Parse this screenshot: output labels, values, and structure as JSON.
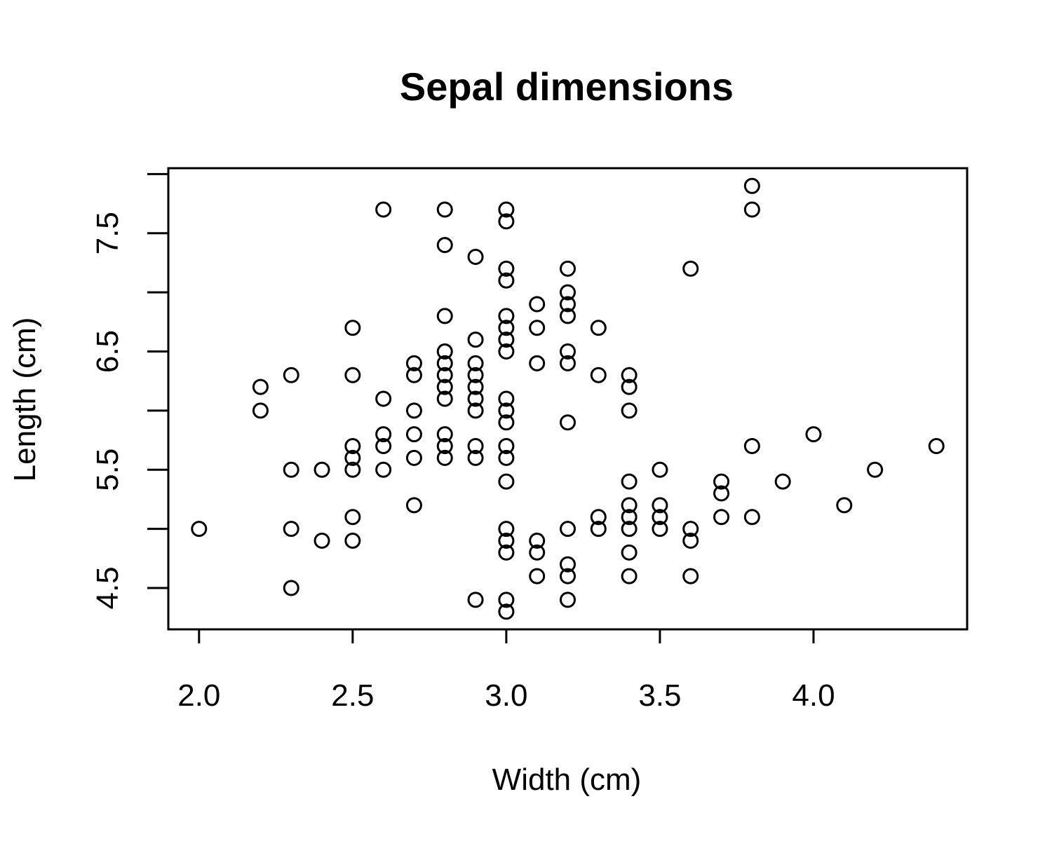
{
  "chart_data": {
    "type": "scatter",
    "title": "Sepal dimensions",
    "xlabel": "Width (cm)",
    "ylabel": "Length (cm)",
    "xlim": [
      1.9,
      4.5
    ],
    "ylim": [
      4.15,
      8.05
    ],
    "grid": false,
    "legend": "none",
    "x_ticks": [
      2.0,
      2.5,
      3.0,
      3.5,
      4.0
    ],
    "x_tick_labels": [
      "2.0",
      "2.5",
      "3.0",
      "3.5",
      "4.0"
    ],
    "y_ticks": [
      4.5,
      5.0,
      5.5,
      6.0,
      6.5,
      7.0,
      7.5,
      8.0
    ],
    "y_tick_labels": [
      "4.5",
      "",
      "5.5",
      "",
      "6.5",
      "",
      "7.5",
      ""
    ],
    "colors": {
      "points": "#000000",
      "axes": "#000000",
      "background": "#ffffff"
    },
    "points": [
      [
        2.0,
        5.0
      ],
      [
        2.2,
        6.2
      ],
      [
        2.2,
        6.0
      ],
      [
        2.3,
        6.3
      ],
      [
        2.3,
        5.5
      ],
      [
        2.3,
        5.0
      ],
      [
        2.3,
        4.5
      ],
      [
        2.4,
        5.5
      ],
      [
        2.4,
        4.9
      ],
      [
        2.5,
        6.7
      ],
      [
        2.5,
        6.3
      ],
      [
        2.5,
        5.7
      ],
      [
        2.5,
        5.6
      ],
      [
        2.5,
        5.5
      ],
      [
        2.5,
        5.1
      ],
      [
        2.5,
        4.9
      ],
      [
        2.6,
        7.7
      ],
      [
        2.6,
        6.1
      ],
      [
        2.6,
        5.8
      ],
      [
        2.6,
        5.7
      ],
      [
        2.6,
        5.5
      ],
      [
        2.7,
        6.4
      ],
      [
        2.7,
        6.3
      ],
      [
        2.7,
        6.0
      ],
      [
        2.7,
        5.8
      ],
      [
        2.7,
        5.6
      ],
      [
        2.7,
        5.2
      ],
      [
        2.8,
        7.7
      ],
      [
        2.8,
        7.4
      ],
      [
        2.8,
        6.8
      ],
      [
        2.8,
        6.5
      ],
      [
        2.8,
        6.4
      ],
      [
        2.8,
        6.3
      ],
      [
        2.8,
        6.2
      ],
      [
        2.8,
        6.1
      ],
      [
        2.8,
        5.8
      ],
      [
        2.8,
        5.7
      ],
      [
        2.8,
        5.6
      ],
      [
        2.9,
        7.3
      ],
      [
        2.9,
        6.6
      ],
      [
        2.9,
        6.4
      ],
      [
        2.9,
        6.3
      ],
      [
        2.9,
        6.2
      ],
      [
        2.9,
        6.1
      ],
      [
        2.9,
        6.0
      ],
      [
        2.9,
        5.7
      ],
      [
        2.9,
        5.6
      ],
      [
        2.9,
        4.4
      ],
      [
        3.0,
        7.7
      ],
      [
        3.0,
        7.6
      ],
      [
        3.0,
        7.2
      ],
      [
        3.0,
        7.1
      ],
      [
        3.0,
        6.8
      ],
      [
        3.0,
        6.7
      ],
      [
        3.0,
        6.6
      ],
      [
        3.0,
        6.5
      ],
      [
        3.0,
        6.1
      ],
      [
        3.0,
        6.0
      ],
      [
        3.0,
        5.9
      ],
      [
        3.0,
        5.7
      ],
      [
        3.0,
        5.6
      ],
      [
        3.0,
        5.4
      ],
      [
        3.0,
        5.0
      ],
      [
        3.0,
        4.9
      ],
      [
        3.0,
        4.8
      ],
      [
        3.0,
        4.4
      ],
      [
        3.0,
        4.3
      ],
      [
        3.1,
        6.9
      ],
      [
        3.1,
        6.7
      ],
      [
        3.1,
        6.4
      ],
      [
        3.1,
        4.9
      ],
      [
        3.1,
        4.8
      ],
      [
        3.1,
        4.6
      ],
      [
        3.2,
        7.2
      ],
      [
        3.2,
        7.0
      ],
      [
        3.2,
        6.9
      ],
      [
        3.2,
        6.8
      ],
      [
        3.2,
        6.5
      ],
      [
        3.2,
        6.4
      ],
      [
        3.2,
        5.9
      ],
      [
        3.2,
        5.0
      ],
      [
        3.2,
        4.7
      ],
      [
        3.2,
        4.6
      ],
      [
        3.2,
        4.4
      ],
      [
        3.3,
        6.7
      ],
      [
        3.3,
        6.3
      ],
      [
        3.3,
        5.1
      ],
      [
        3.3,
        5.0
      ],
      [
        3.4,
        6.3
      ],
      [
        3.4,
        6.2
      ],
      [
        3.4,
        6.0
      ],
      [
        3.4,
        5.4
      ],
      [
        3.4,
        5.2
      ],
      [
        3.4,
        5.1
      ],
      [
        3.4,
        5.0
      ],
      [
        3.4,
        4.8
      ],
      [
        3.4,
        4.6
      ],
      [
        3.5,
        5.5
      ],
      [
        3.5,
        5.2
      ],
      [
        3.5,
        5.1
      ],
      [
        3.5,
        5.0
      ],
      [
        3.6,
        7.2
      ],
      [
        3.6,
        5.0
      ],
      [
        3.6,
        4.9
      ],
      [
        3.6,
        4.6
      ],
      [
        3.7,
        5.4
      ],
      [
        3.7,
        5.3
      ],
      [
        3.7,
        5.1
      ],
      [
        3.8,
        7.9
      ],
      [
        3.8,
        7.7
      ],
      [
        3.8,
        5.7
      ],
      [
        3.8,
        5.1
      ],
      [
        3.9,
        5.4
      ],
      [
        4.0,
        5.8
      ],
      [
        4.1,
        5.2
      ],
      [
        4.2,
        5.5
      ],
      [
        4.4,
        5.7
      ]
    ]
  }
}
